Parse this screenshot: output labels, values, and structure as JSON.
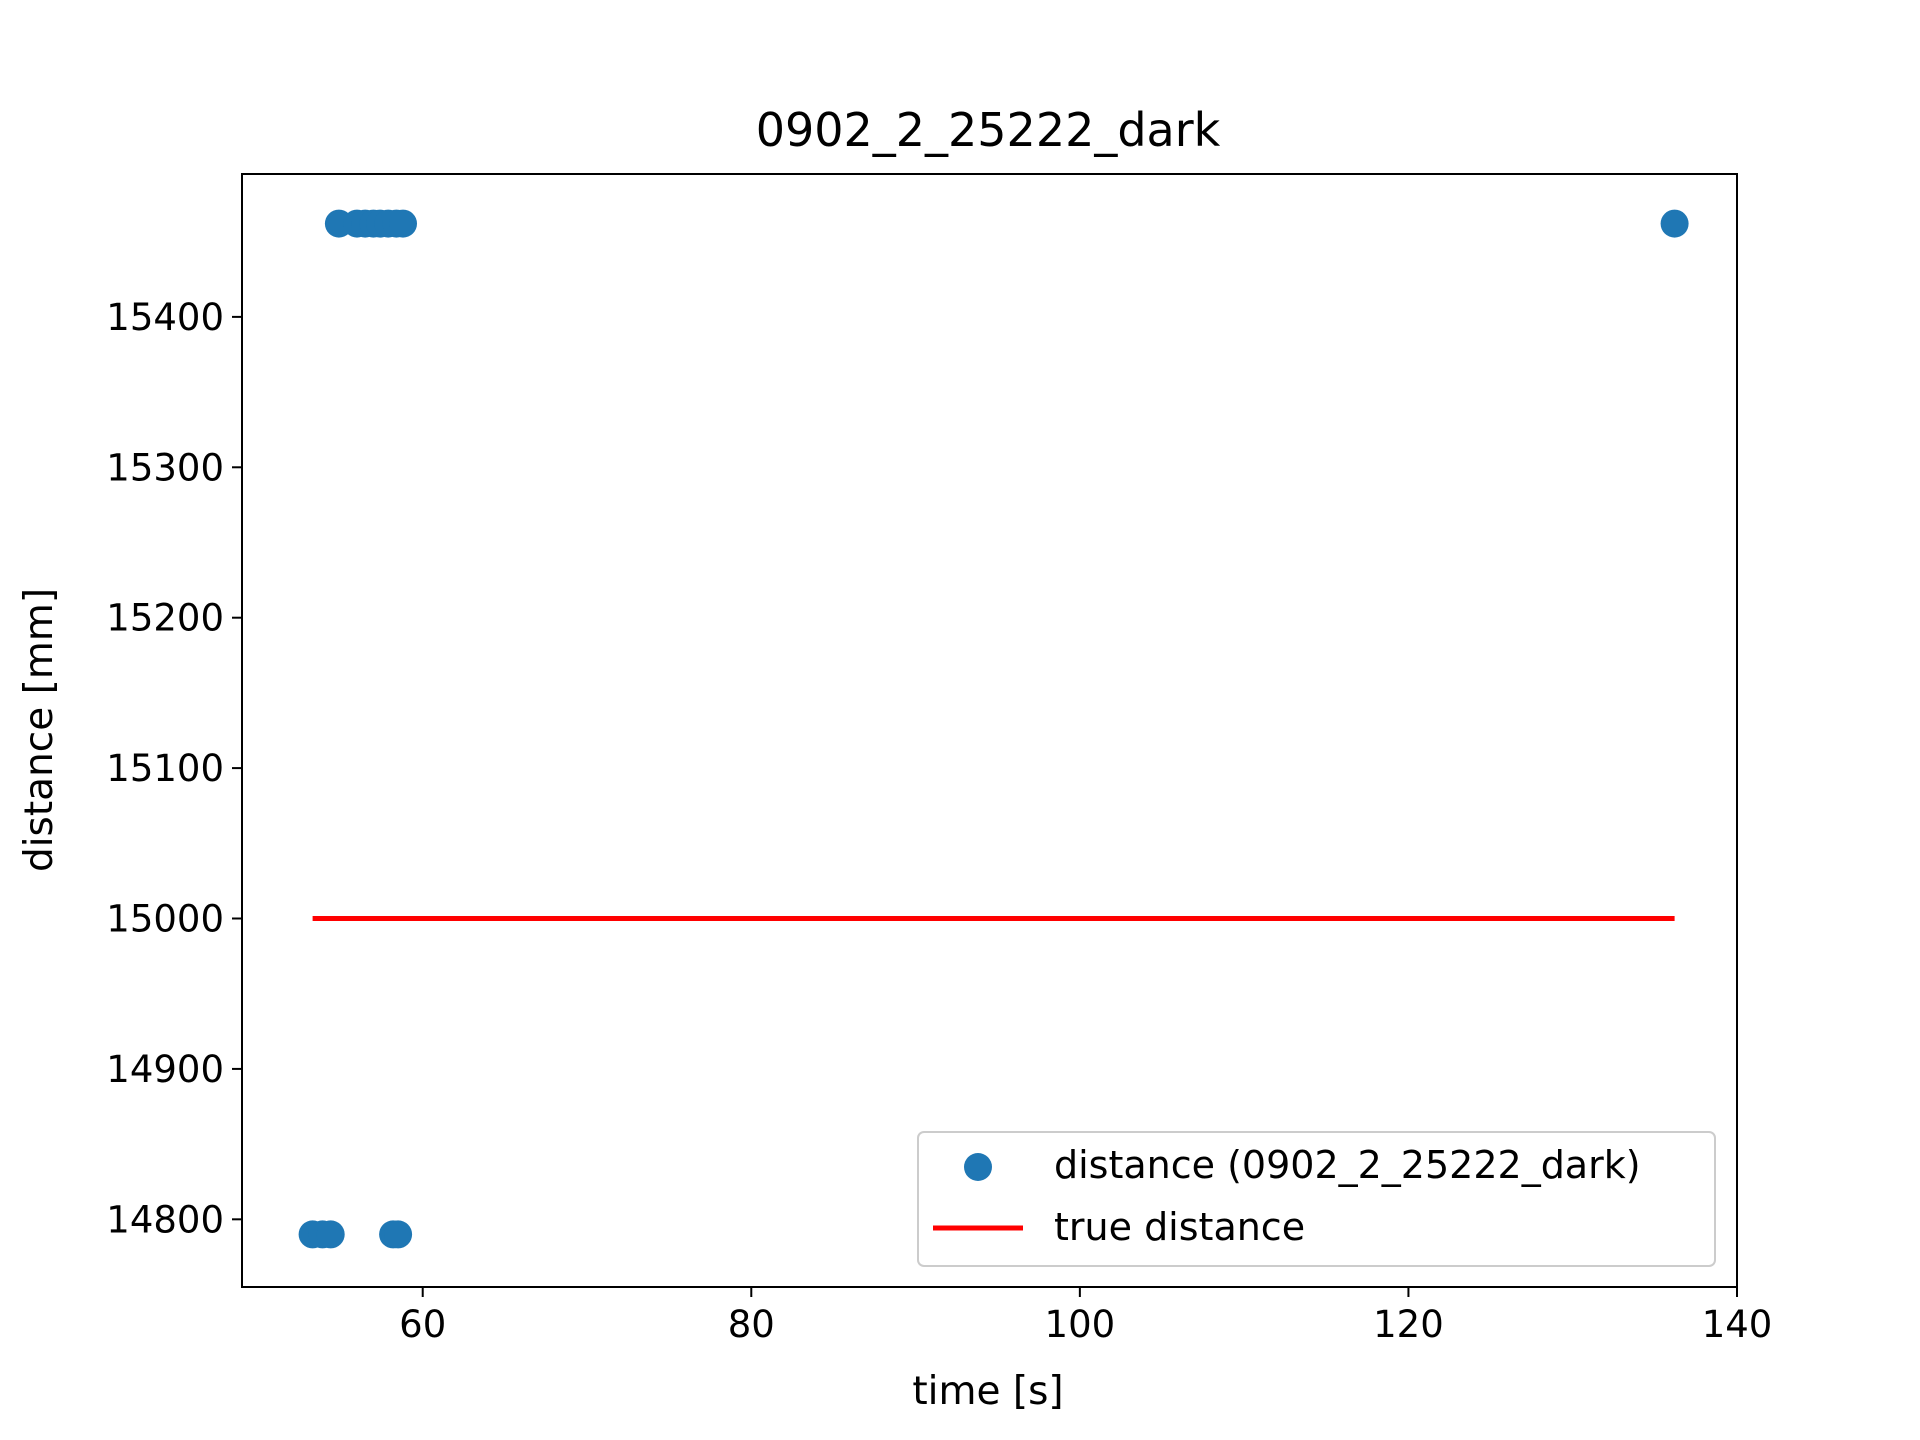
{
  "chart_data": {
    "type": "scatter",
    "title": "0902_2_25222_dark",
    "xlabel": "time [s]",
    "ylabel": "distance [mm]",
    "xlim": [
      49,
      140
    ],
    "ylim": [
      14755,
      15495
    ],
    "xticks": [
      60,
      80,
      100,
      120,
      140
    ],
    "yticks": [
      14800,
      14900,
      15000,
      15100,
      15200,
      15300,
      15400
    ],
    "grid": false,
    "legend_position": "lower-right",
    "series": [
      {
        "name": "distance (0902_2_25222_dark)",
        "kind": "scatter",
        "color": "#1f77b4",
        "points": [
          {
            "x": 53.3,
            "y": 14790
          },
          {
            "x": 53.9,
            "y": 14790
          },
          {
            "x": 54.4,
            "y": 14790
          },
          {
            "x": 58.2,
            "y": 14790
          },
          {
            "x": 58.5,
            "y": 14790
          },
          {
            "x": 54.9,
            "y": 15462
          },
          {
            "x": 56.0,
            "y": 15462
          },
          {
            "x": 56.5,
            "y": 15462
          },
          {
            "x": 57.0,
            "y": 15462
          },
          {
            "x": 57.4,
            "y": 15462
          },
          {
            "x": 57.9,
            "y": 15462
          },
          {
            "x": 58.4,
            "y": 15462
          },
          {
            "x": 58.8,
            "y": 15462
          },
          {
            "x": 136.2,
            "y": 15462
          }
        ]
      },
      {
        "name": "true distance",
        "kind": "line",
        "color": "#ff0000",
        "points": [
          {
            "x": 53.3,
            "y": 15000
          },
          {
            "x": 136.2,
            "y": 15000
          }
        ]
      }
    ]
  }
}
